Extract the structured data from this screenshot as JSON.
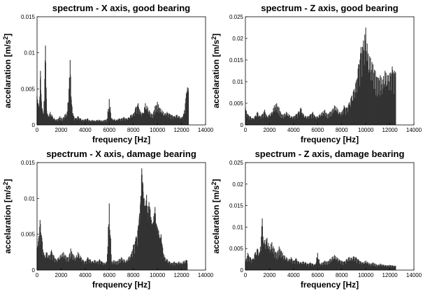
{
  "chart_data": [
    {
      "type": "bar",
      "title": "spectrum - X axis, good bearing",
      "xlabel": "frequency [Hz]",
      "ylabel": "accelaration [m/s",
      "ylabel_superscript": "2",
      "ylabel_suffix": "]",
      "xlim": [
        0,
        14000
      ],
      "ylim": [
        0,
        0.015
      ],
      "xticks": [
        "0",
        "2000",
        "4000",
        "6000",
        "8000",
        "10000",
        "12000",
        "14000"
      ],
      "yticks": [
        "0",
        "0.005",
        "0.01",
        "0.015"
      ],
      "series": [
        {
          "color": "#333333",
          "x": [
            0,
            100,
            200,
            280,
            350,
            450,
            550,
            700,
            800,
            950,
            1100,
            1300,
            1500,
            1700,
            1900,
            2100,
            2300,
            2500,
            2650,
            2750,
            2850,
            3000,
            3200,
            3400,
            3600,
            3800,
            4000,
            4200,
            4400,
            4600,
            4800,
            5000,
            5200,
            5400,
            5600,
            5800,
            6000,
            6200,
            6400,
            6600,
            6800,
            7000,
            7200,
            7400,
            7600,
            7800,
            8000,
            8200,
            8400,
            8600,
            8800,
            9000,
            9200,
            9400,
            9600,
            9800,
            10000,
            10200,
            10400,
            10600,
            10800,
            11000,
            11200,
            11400,
            11600,
            11800,
            12000,
            12200,
            12400,
            12500
          ],
          "y": [
            0.004,
            0.003,
            0.0025,
            0.0075,
            0.0035,
            0.002,
            0.0015,
            0.011,
            0.002,
            0.0012,
            0.0018,
            0.0012,
            0.0008,
            0.0008,
            0.0012,
            0.0009,
            0.0014,
            0.0018,
            0.005,
            0.009,
            0.0035,
            0.0014,
            0.0009,
            0.0012,
            0.0009,
            0.0007,
            0.0008,
            0.0009,
            0.0006,
            0.0007,
            0.0006,
            0.0007,
            0.0007,
            0.0006,
            0.0007,
            0.0008,
            0.0036,
            0.0009,
            0.0008,
            0.0007,
            0.0009,
            0.0009,
            0.0011,
            0.0009,
            0.001,
            0.0014,
            0.0015,
            0.0025,
            0.003,
            0.0018,
            0.0017,
            0.003,
            0.0024,
            0.0018,
            0.0015,
            0.0026,
            0.0032,
            0.0024,
            0.002,
            0.0016,
            0.0018,
            0.0016,
            0.0014,
            0.0012,
            0.0014,
            0.0012,
            0.001,
            0.0016,
            0.0044,
            0.0052
          ]
        }
      ]
    },
    {
      "type": "bar",
      "title": "spectrum - Z axis, good bearing",
      "xlabel": "frequency [Hz]",
      "ylabel": "accelaration [m/s",
      "ylabel_superscript": "2",
      "ylabel_suffix": "]",
      "xlim": [
        0,
        14000
      ],
      "ylim": [
        0,
        0.025
      ],
      "xticks": [
        "0",
        "2000",
        "4000",
        "6000",
        "8000",
        "10000",
        "12000",
        "14000"
      ],
      "yticks": [
        "0",
        "0.005",
        "0.01",
        "0.015",
        "0.02",
        "0.025"
      ],
      "series": [
        {
          "color": "#333333",
          "x": [
            0,
            200,
            400,
            600,
            800,
            1000,
            1200,
            1400,
            1600,
            1800,
            2000,
            2200,
            2400,
            2600,
            2800,
            3000,
            3200,
            3400,
            3600,
            3800,
            4000,
            4200,
            4400,
            4600,
            4800,
            5000,
            5200,
            5400,
            5600,
            5800,
            6000,
            6200,
            6400,
            6600,
            6800,
            7000,
            7200,
            7400,
            7600,
            7800,
            8000,
            8200,
            8400,
            8600,
            8800,
            9000,
            9200,
            9400,
            9600,
            9800,
            10000,
            10200,
            10400,
            10600,
            10800,
            11000,
            11200,
            11400,
            11600,
            11800,
            12000,
            12200,
            12400
          ],
          "y": [
            0.004,
            0.0025,
            0.002,
            0.0015,
            0.002,
            0.003,
            0.002,
            0.0025,
            0.0035,
            0.002,
            0.0025,
            0.003,
            0.0045,
            0.005,
            0.004,
            0.0025,
            0.0025,
            0.003,
            0.0025,
            0.002,
            0.002,
            0.0025,
            0.003,
            0.004,
            0.0025,
            0.002,
            0.002,
            0.0025,
            0.003,
            0.002,
            0.002,
            0.0025,
            0.003,
            0.0035,
            0.0025,
            0.003,
            0.0035,
            0.0045,
            0.004,
            0.003,
            0.003,
            0.0045,
            0.004,
            0.005,
            0.0065,
            0.008,
            0.01,
            0.014,
            0.018,
            0.0195,
            0.0225,
            0.0165,
            0.0155,
            0.014,
            0.0125,
            0.011,
            0.0115,
            0.0105,
            0.0125,
            0.0115,
            0.012,
            0.0135,
            0.0125
          ]
        }
      ]
    },
    {
      "type": "bar",
      "title": "spectrum - X axis, damage bearing",
      "xlabel": "frequency [Hz]",
      "ylabel": "accelaration [m/s",
      "ylabel_superscript": "2",
      "ylabel_suffix": "]",
      "xlim": [
        0,
        14000
      ],
      "ylim": [
        0,
        0.015
      ],
      "xticks": [
        "0",
        "2000",
        "4000",
        "6000",
        "8000",
        "10000",
        "12000",
        "14000"
      ],
      "yticks": [
        "0",
        "0.005",
        "0.01",
        "0.015"
      ],
      "series": [
        {
          "color": "#333333",
          "x": [
            0,
            100,
            250,
            400,
            600,
            800,
            1000,
            1200,
            1400,
            1600,
            1800,
            2000,
            2200,
            2400,
            2600,
            2800,
            3000,
            3200,
            3400,
            3600,
            3800,
            4000,
            4200,
            4400,
            4600,
            4800,
            5000,
            5200,
            5400,
            5600,
            5800,
            6000,
            6200,
            6400,
            6600,
            6800,
            7000,
            7200,
            7400,
            7600,
            7800,
            8000,
            8200,
            8400,
            8500,
            8600,
            8700,
            8800,
            8900,
            9000,
            9100,
            9200,
            9300,
            9400,
            9500,
            9600,
            9700,
            9800,
            9900,
            10000,
            10100,
            10200,
            10300,
            10400,
            10600,
            10800,
            11000,
            11200,
            11400,
            11600,
            11800,
            12000,
            12200,
            12400
          ],
          "y": [
            0.003,
            0.004,
            0.007,
            0.0045,
            0.002,
            0.0025,
            0.002,
            0.0028,
            0.002,
            0.0015,
            0.0018,
            0.0022,
            0.0025,
            0.002,
            0.0018,
            0.003,
            0.0022,
            0.0018,
            0.0025,
            0.002,
            0.0015,
            0.0012,
            0.0018,
            0.0015,
            0.0012,
            0.0014,
            0.0012,
            0.0015,
            0.0012,
            0.001,
            0.0012,
            0.0093,
            0.0012,
            0.0014,
            0.0012,
            0.0015,
            0.0018,
            0.0015,
            0.0013,
            0.0018,
            0.0022,
            0.0035,
            0.0045,
            0.006,
            0.0075,
            0.0095,
            0.0142,
            0.012,
            0.01,
            0.009,
            0.0105,
            0.008,
            0.0095,
            0.0085,
            0.007,
            0.0065,
            0.0075,
            0.0088,
            0.0065,
            0.006,
            0.0055,
            0.0045,
            0.005,
            0.0035,
            0.0018,
            0.0015,
            0.0012,
            0.001,
            0.0012,
            0.001,
            0.0012,
            0.001,
            0.0013,
            0.0014
          ]
        }
      ]
    },
    {
      "type": "bar",
      "title": "spectrum - Z axis, damage bearing",
      "xlabel": "frequency [Hz]",
      "ylabel": "accelaration [m/s",
      "ylabel_superscript": "2",
      "ylabel_suffix": "]",
      "xlim": [
        0,
        14000
      ],
      "ylim": [
        0,
        0.025
      ],
      "xticks": [
        "0",
        "2000",
        "4000",
        "6000",
        "8000",
        "10000",
        "12000",
        "14000"
      ],
      "yticks": [
        "0",
        "0.005",
        "0.01",
        "0.015",
        "0.02",
        "0.025"
      ],
      "series": [
        {
          "color": "#333333",
          "x": [
            0,
            200,
            400,
            600,
            800,
            1000,
            1200,
            1400,
            1500,
            1600,
            1800,
            2000,
            2200,
            2400,
            2600,
            2800,
            3000,
            3200,
            3400,
            3600,
            3800,
            4000,
            4200,
            4400,
            4600,
            4800,
            5000,
            5200,
            5400,
            5600,
            5800,
            6000,
            6200,
            6400,
            6600,
            6800,
            7000,
            7200,
            7400,
            7600,
            7800,
            8000,
            8200,
            8400,
            8600,
            8800,
            9000,
            9200,
            9400,
            9600,
            9800,
            10000,
            10200,
            10400,
            10600,
            10800,
            11000,
            11200,
            11400,
            11600,
            11800,
            12000,
            12200,
            12400
          ],
          "y": [
            0.002,
            0.004,
            0.003,
            0.0025,
            0.004,
            0.005,
            0.004,
            0.012,
            0.006,
            0.007,
            0.0075,
            0.0055,
            0.0065,
            0.005,
            0.004,
            0.0055,
            0.0045,
            0.0035,
            0.003,
            0.0025,
            0.003,
            0.0022,
            0.0028,
            0.002,
            0.0018,
            0.002,
            0.0018,
            0.0015,
            0.0018,
            0.0015,
            0.0013,
            0.004,
            0.0015,
            0.0018,
            0.0022,
            0.002,
            0.0025,
            0.003,
            0.0035,
            0.003,
            0.0025,
            0.0022,
            0.002,
            0.0025,
            0.003,
            0.0028,
            0.0032,
            0.003,
            0.0025,
            0.002,
            0.0018,
            0.0022,
            0.0018,
            0.0015,
            0.0018,
            0.0015,
            0.0012,
            0.0015,
            0.0013,
            0.0012,
            0.0011,
            0.0012,
            0.0011,
            0.001
          ]
        }
      ]
    }
  ]
}
